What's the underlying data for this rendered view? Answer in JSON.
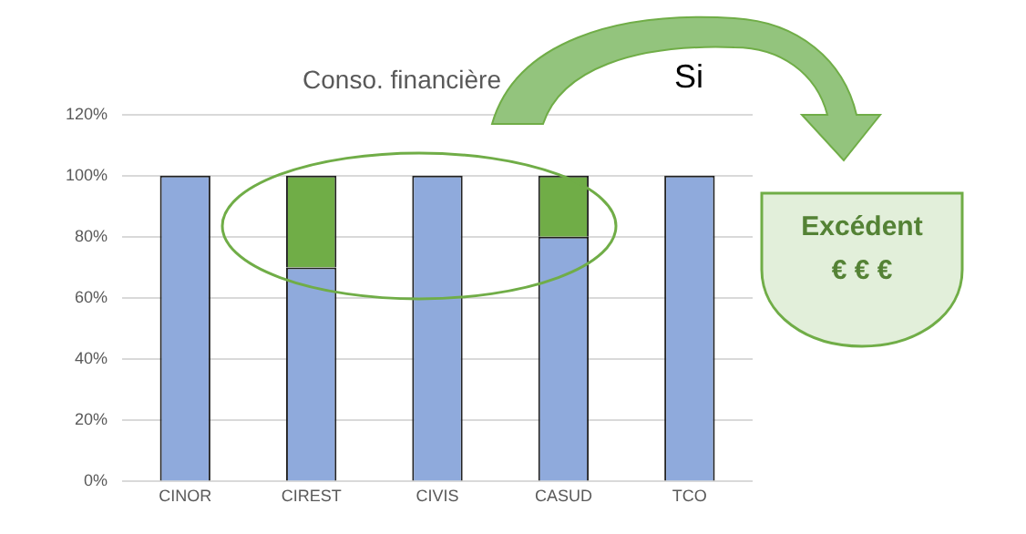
{
  "chart_data": {
    "type": "bar",
    "title": "Conso. financière",
    "categories": [
      "CINOR",
      "CIREST",
      "CIVIS",
      "CASUD",
      "TCO"
    ],
    "stacked": true,
    "series": [
      {
        "color": "#8faadc",
        "values": [
          100,
          70,
          100,
          80,
          100
        ]
      },
      {
        "color": "#70ad47",
        "values": [
          0,
          30,
          0,
          20,
          0
        ]
      }
    ],
    "ylim": [
      0,
      120
    ],
    "yticks": [
      {
        "value": 0,
        "label": "0%"
      },
      {
        "value": 20,
        "label": "20%"
      },
      {
        "value": 40,
        "label": "40%"
      },
      {
        "value": 60,
        "label": "60%"
      },
      {
        "value": 80,
        "label": "80%"
      },
      {
        "value": 100,
        "label": "100%"
      },
      {
        "value": 120,
        "label": "120%"
      }
    ],
    "grid": "y",
    "legend": false,
    "annotations": [
      "Si",
      "Excédent",
      "€ € €"
    ]
  }
}
